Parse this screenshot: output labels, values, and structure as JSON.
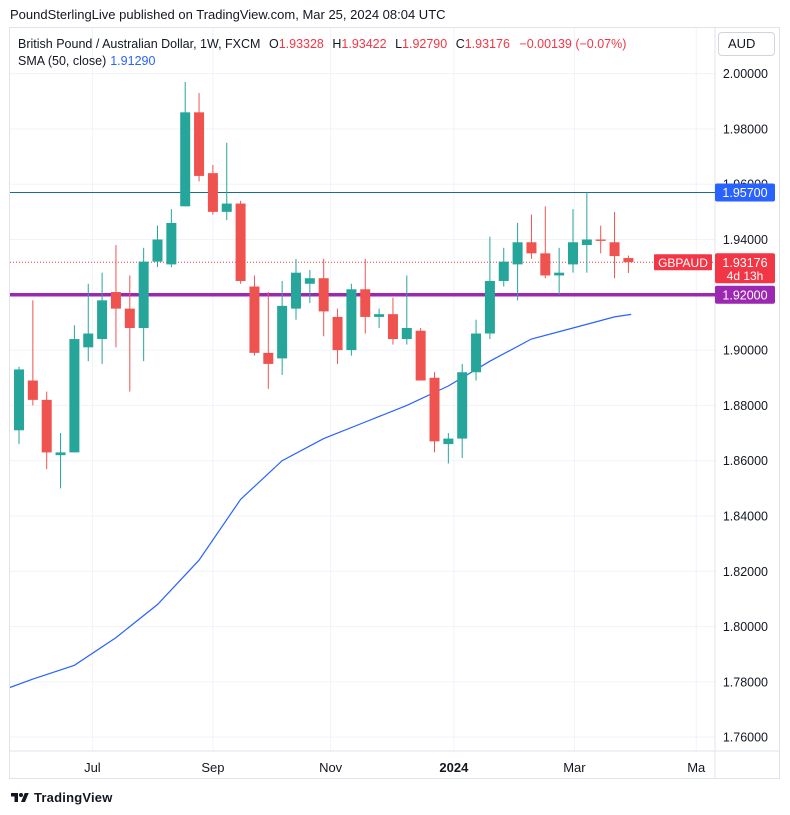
{
  "header": {
    "text": "PoundSterlingLive published on TradingView.com, Mar 25, 2024 08:04 UTC"
  },
  "legend": {
    "symbol": "British Pound / Australian Dollar, 1W, FXCM",
    "ohlc": [
      {
        "label": "O",
        "value": "1.93328"
      },
      {
        "label": "H",
        "value": "1.93422"
      },
      {
        "label": "L",
        "value": "1.92790"
      },
      {
        "label": "C",
        "value": "1.93176"
      }
    ],
    "change": "−0.00139 (−0.07%)",
    "sma_label": "SMA (50, close)",
    "sma_value": "1.91290"
  },
  "currency": "AUD",
  "footer": {
    "brand": "TradingView"
  },
  "colors": {
    "up": "#26a69a",
    "down": "#ef5350",
    "sma": "#2962ff",
    "resistance": "#1b6e8b",
    "support": "#9c27b0",
    "last": "#f23645"
  },
  "chart_data": {
    "type": "candlestick",
    "symbol": "GBPAUD",
    "timeframe": "1W",
    "ylim": [
      1.755,
      2.0165
    ],
    "yticks": [
      "2.00000",
      "1.98000",
      "1.96000",
      "1.94000",
      "1.90000",
      "1.88000",
      "1.86000",
      "1.84000",
      "1.82000",
      "1.80000",
      "1.78000",
      "1.76000"
    ],
    "x_labels": [
      {
        "label": "Jul",
        "bar": 5.3,
        "bold": false
      },
      {
        "label": "Sep",
        "bar": 14.0,
        "bold": false
      },
      {
        "label": "Nov",
        "bar": 22.5,
        "bold": false
      },
      {
        "label": "2024",
        "bar": 31.4,
        "bold": true
      },
      {
        "label": "Mar",
        "bar": 40.1,
        "bold": false
      },
      {
        "label": "Ma",
        "bar": 48.9,
        "bold": false
      }
    ],
    "candles": [
      {
        "o": 1.871,
        "h": 1.894,
        "l": 1.866,
        "c": 1.893
      },
      {
        "o": 1.889,
        "h": 1.918,
        "l": 1.88,
        "c": 1.882
      },
      {
        "o": 1.882,
        "h": 1.885,
        "l": 1.857,
        "c": 1.863
      },
      {
        "o": 1.862,
        "h": 1.87,
        "l": 1.85,
        "c": 1.863
      },
      {
        "o": 1.863,
        "h": 1.909,
        "l": 1.863,
        "c": 1.904
      },
      {
        "o": 1.901,
        "h": 1.924,
        "l": 1.896,
        "c": 1.906
      },
      {
        "o": 1.904,
        "h": 1.928,
        "l": 1.895,
        "c": 1.918
      },
      {
        "o": 1.921,
        "h": 1.938,
        "l": 1.901,
        "c": 1.915
      },
      {
        "o": 1.915,
        "h": 1.927,
        "l": 1.885,
        "c": 1.908
      },
      {
        "o": 1.908,
        "h": 1.937,
        "l": 1.896,
        "c": 1.932
      },
      {
        "o": 1.932,
        "h": 1.945,
        "l": 1.93,
        "c": 1.94
      },
      {
        "o": 1.931,
        "h": 1.951,
        "l": 1.93,
        "c": 1.946
      },
      {
        "o": 1.952,
        "h": 1.997,
        "l": 1.952,
        "c": 1.986
      },
      {
        "o": 1.986,
        "h": 1.993,
        "l": 1.961,
        "c": 1.963
      },
      {
        "o": 1.964,
        "h": 1.967,
        "l": 1.949,
        "c": 1.95
      },
      {
        "o": 1.95,
        "h": 1.975,
        "l": 1.947,
        "c": 1.953
      },
      {
        "o": 1.953,
        "h": 1.954,
        "l": 1.924,
        "c": 1.925
      },
      {
        "o": 1.923,
        "h": 1.927,
        "l": 1.898,
        "c": 1.899
      },
      {
        "o": 1.899,
        "h": 1.921,
        "l": 1.886,
        "c": 1.895
      },
      {
        "o": 1.897,
        "h": 1.925,
        "l": 1.891,
        "c": 1.916
      },
      {
        "o": 1.915,
        "h": 1.933,
        "l": 1.911,
        "c": 1.928
      },
      {
        "o": 1.924,
        "h": 1.929,
        "l": 1.917,
        "c": 1.926
      },
      {
        "o": 1.926,
        "h": 1.933,
        "l": 1.905,
        "c": 1.914
      },
      {
        "o": 1.912,
        "h": 1.915,
        "l": 1.895,
        "c": 1.9
      },
      {
        "o": 1.9,
        "h": 1.924,
        "l": 1.898,
        "c": 1.922
      },
      {
        "o": 1.922,
        "h": 1.933,
        "l": 1.906,
        "c": 1.912
      },
      {
        "o": 1.912,
        "h": 1.915,
        "l": 1.908,
        "c": 1.913
      },
      {
        "o": 1.913,
        "h": 1.919,
        "l": 1.902,
        "c": 1.904
      },
      {
        "o": 1.904,
        "h": 1.927,
        "l": 1.902,
        "c": 1.908
      },
      {
        "o": 1.907,
        "h": 1.908,
        "l": 1.889,
        "c": 1.889
      },
      {
        "o": 1.89,
        "h": 1.892,
        "l": 1.863,
        "c": 1.867
      },
      {
        "o": 1.866,
        "h": 1.87,
        "l": 1.859,
        "c": 1.868
      },
      {
        "o": 1.868,
        "h": 1.895,
        "l": 1.861,
        "c": 1.892
      },
      {
        "o": 1.892,
        "h": 1.911,
        "l": 1.889,
        "c": 1.906
      },
      {
        "o": 1.906,
        "h": 1.941,
        "l": 1.904,
        "c": 1.925
      },
      {
        "o": 1.925,
        "h": 1.937,
        "l": 1.923,
        "c": 1.932
      },
      {
        "o": 1.931,
        "h": 1.946,
        "l": 1.918,
        "c": 1.939
      },
      {
        "o": 1.939,
        "h": 1.949,
        "l": 1.933,
        "c": 1.935
      },
      {
        "o": 1.935,
        "h": 1.952,
        "l": 1.926,
        "c": 1.927
      },
      {
        "o": 1.927,
        "h": 1.937,
        "l": 1.92,
        "c": 1.928
      },
      {
        "o": 1.931,
        "h": 1.951,
        "l": 1.928,
        "c": 1.939
      },
      {
        "o": 1.938,
        "h": 1.957,
        "l": 1.928,
        "c": 1.94
      },
      {
        "o": 1.94,
        "h": 1.945,
        "l": 1.935,
        "c": 1.9395
      },
      {
        "o": 1.939,
        "h": 1.95,
        "l": 1.926,
        "c": 1.934
      },
      {
        "o": 1.9333,
        "h": 1.9342,
        "l": 1.9279,
        "c": 1.9318
      }
    ],
    "sma": {
      "name": "SMA (50, close)",
      "points": [
        [
          -1.2,
          1.777
        ],
        [
          1,
          1.781
        ],
        [
          4,
          1.786
        ],
        [
          7,
          1.796
        ],
        [
          10,
          1.808
        ],
        [
          13,
          1.824
        ],
        [
          16,
          1.846
        ],
        [
          19,
          1.86
        ],
        [
          22,
          1.868
        ],
        [
          25,
          1.874
        ],
        [
          28,
          1.88
        ],
        [
          31,
          1.887
        ],
        [
          34,
          1.896
        ],
        [
          37,
          1.904
        ],
        [
          40,
          1.908
        ],
        [
          43,
          1.912
        ],
        [
          44.2,
          1.9129
        ]
      ]
    },
    "resistance": {
      "value": 1.957,
      "label": "1.95700"
    },
    "support": {
      "value": 1.92,
      "label": "1.92000"
    },
    "last_price": {
      "value": 1.93176,
      "label": "1.93176",
      "countdown": "4d 13h",
      "symbol_tag": "GBPAUD"
    }
  }
}
